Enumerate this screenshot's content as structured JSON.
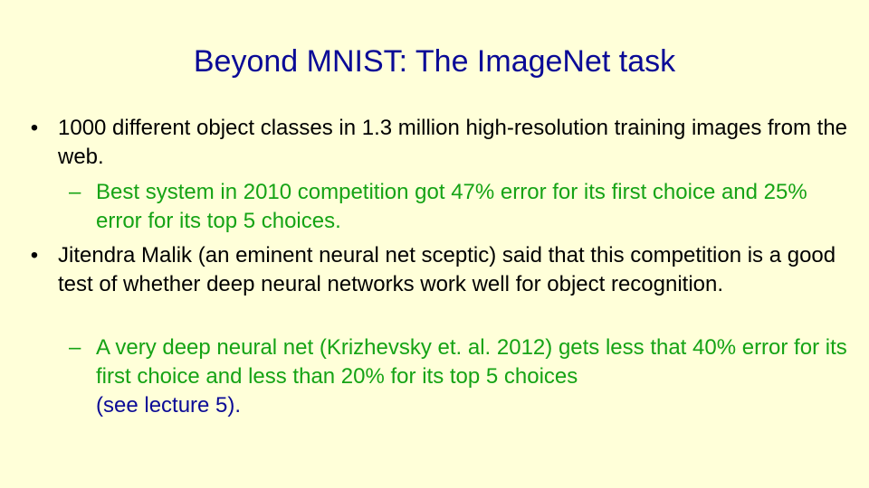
{
  "slide": {
    "title": "Beyond MNIST: The ImageNet task",
    "bullet_marker": "•",
    "sub_marker": "–",
    "bullets": [
      {
        "text": "1000 different object classes in 1.3 million high-resolution training images from the web.",
        "subpoints": [
          {
            "text": "Best system in 2010 competition got 47% error for its first choice and 25% error for its top 5 choices."
          }
        ]
      },
      {
        "text": "Jitendra Malik (an eminent neural net sceptic) said that this competition is a good test of whether deep neural networks work well for object recognition.",
        "subpoints": [
          {
            "text": "A very deep neural net (Krizhevsky et. al. 2012) gets less that 40% error for its first choice and less than 20% for its top 5 choices",
            "note": "(see lecture 5)."
          }
        ]
      }
    ]
  },
  "colors": {
    "background": "#ffffd9",
    "title": "#0a0a96",
    "body_text": "#000000",
    "sub_text": "#15a315",
    "note_text": "#0a0a96"
  }
}
